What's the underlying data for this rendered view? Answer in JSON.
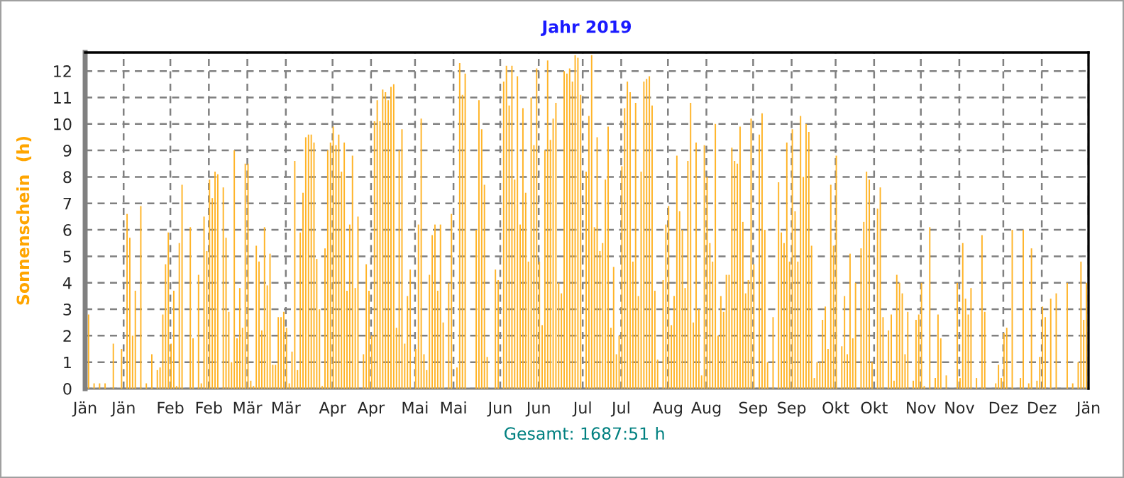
{
  "chart_data": {
    "type": "bar",
    "title": "Jahr 2019",
    "ylabel": "Sonnenschein  (h)",
    "annotations": [
      "Gesamt: 1687:51 h"
    ],
    "x": [
      "2019-01-01",
      "2019-01-02",
      "2019-01-03",
      "2019-01-04",
      "2019-01-05",
      "2019-01-06",
      "2019-01-07",
      "2019-01-08",
      "2019-01-09",
      "2019-01-10",
      "2019-01-11",
      "2019-01-12",
      "2019-01-13",
      "2019-01-14",
      "2019-01-15",
      "2019-01-16",
      "2019-01-17",
      "2019-01-18",
      "2019-01-19",
      "2019-01-20",
      "2019-01-21",
      "2019-01-22",
      "2019-01-23",
      "2019-01-24",
      "2019-01-25",
      "2019-01-26",
      "2019-01-27",
      "2019-01-28",
      "2019-01-29",
      "2019-01-30",
      "2019-01-31",
      "2019-02-01",
      "2019-02-02",
      "2019-02-03",
      "2019-02-04",
      "2019-02-05",
      "2019-02-06",
      "2019-02-07",
      "2019-02-08",
      "2019-02-09",
      "2019-02-10",
      "2019-02-11",
      "2019-02-12",
      "2019-02-13",
      "2019-02-14",
      "2019-02-15",
      "2019-02-16",
      "2019-02-17",
      "2019-02-18",
      "2019-02-19",
      "2019-02-20",
      "2019-02-21",
      "2019-02-22",
      "2019-02-23",
      "2019-02-24",
      "2019-02-25",
      "2019-02-26",
      "2019-02-27",
      "2019-02-28",
      "2019-03-01",
      "2019-03-02",
      "2019-03-03",
      "2019-03-04",
      "2019-03-05",
      "2019-03-06",
      "2019-03-07",
      "2019-03-08",
      "2019-03-09",
      "2019-03-10",
      "2019-03-11",
      "2019-03-12",
      "2019-03-13",
      "2019-03-14",
      "2019-03-15",
      "2019-03-16",
      "2019-03-17",
      "2019-03-18",
      "2019-03-19",
      "2019-03-20",
      "2019-03-21",
      "2019-03-22",
      "2019-03-23",
      "2019-03-24",
      "2019-03-25",
      "2019-03-26",
      "2019-03-27",
      "2019-03-28",
      "2019-03-29",
      "2019-03-30",
      "2019-03-31",
      "2019-04-01",
      "2019-04-02",
      "2019-04-03",
      "2019-04-04",
      "2019-04-05",
      "2019-04-06",
      "2019-04-07",
      "2019-04-08",
      "2019-04-09",
      "2019-04-10",
      "2019-04-11",
      "2019-04-12",
      "2019-04-13",
      "2019-04-14",
      "2019-04-15",
      "2019-04-16",
      "2019-04-17",
      "2019-04-18",
      "2019-04-19",
      "2019-04-20",
      "2019-04-21",
      "2019-04-22",
      "2019-04-23",
      "2019-04-24",
      "2019-04-25",
      "2019-04-26",
      "2019-04-27",
      "2019-04-28",
      "2019-04-29",
      "2019-04-30",
      "2019-05-01",
      "2019-05-02",
      "2019-05-03",
      "2019-05-04",
      "2019-05-05",
      "2019-05-06",
      "2019-05-07",
      "2019-05-08",
      "2019-05-09",
      "2019-05-10",
      "2019-05-11",
      "2019-05-12",
      "2019-05-13",
      "2019-05-14",
      "2019-05-15",
      "2019-05-16",
      "2019-05-17",
      "2019-05-18",
      "2019-05-19",
      "2019-05-20",
      "2019-05-21",
      "2019-05-22",
      "2019-05-23",
      "2019-05-24",
      "2019-05-25",
      "2019-05-26",
      "2019-05-27",
      "2019-05-28",
      "2019-05-29",
      "2019-05-30",
      "2019-05-31",
      "2019-06-01",
      "2019-06-02",
      "2019-06-03",
      "2019-06-04",
      "2019-06-05",
      "2019-06-06",
      "2019-06-07",
      "2019-06-08",
      "2019-06-09",
      "2019-06-10",
      "2019-06-11",
      "2019-06-12",
      "2019-06-13",
      "2019-06-14",
      "2019-06-15",
      "2019-06-16",
      "2019-06-17",
      "2019-06-18",
      "2019-06-19",
      "2019-06-20",
      "2019-06-21",
      "2019-06-22",
      "2019-06-23",
      "2019-06-24",
      "2019-06-25",
      "2019-06-26",
      "2019-06-27",
      "2019-06-28",
      "2019-06-29",
      "2019-06-30",
      "2019-07-01",
      "2019-07-02",
      "2019-07-03",
      "2019-07-04",
      "2019-07-05",
      "2019-07-06",
      "2019-07-07",
      "2019-07-08",
      "2019-07-09",
      "2019-07-10",
      "2019-07-11",
      "2019-07-12",
      "2019-07-13",
      "2019-07-14",
      "2019-07-15",
      "2019-07-16",
      "2019-07-17",
      "2019-07-18",
      "2019-07-19",
      "2019-07-20",
      "2019-07-21",
      "2019-07-22",
      "2019-07-23",
      "2019-07-24",
      "2019-07-25",
      "2019-07-26",
      "2019-07-27",
      "2019-07-28",
      "2019-07-29",
      "2019-07-30",
      "2019-07-31",
      "2019-08-01",
      "2019-08-02",
      "2019-08-03",
      "2019-08-04",
      "2019-08-05",
      "2019-08-06",
      "2019-08-07",
      "2019-08-08",
      "2019-08-09",
      "2019-08-10",
      "2019-08-11",
      "2019-08-12",
      "2019-08-13",
      "2019-08-14",
      "2019-08-15",
      "2019-08-16",
      "2019-08-17",
      "2019-08-18",
      "2019-08-19",
      "2019-08-20",
      "2019-08-21",
      "2019-08-22",
      "2019-08-23",
      "2019-08-24",
      "2019-08-25",
      "2019-08-26",
      "2019-08-27",
      "2019-08-28",
      "2019-08-29",
      "2019-08-30",
      "2019-08-31",
      "2019-09-01",
      "2019-09-02",
      "2019-09-03",
      "2019-09-04",
      "2019-09-05",
      "2019-09-06",
      "2019-09-07",
      "2019-09-08",
      "2019-09-09",
      "2019-09-10",
      "2019-09-11",
      "2019-09-12",
      "2019-09-13",
      "2019-09-14",
      "2019-09-15",
      "2019-09-16",
      "2019-09-17",
      "2019-09-18",
      "2019-09-19",
      "2019-09-20",
      "2019-09-21",
      "2019-09-22",
      "2019-09-23",
      "2019-09-24",
      "2019-09-25",
      "2019-09-26",
      "2019-09-27",
      "2019-09-28",
      "2019-09-29",
      "2019-09-30",
      "2019-10-01",
      "2019-10-02",
      "2019-10-03",
      "2019-10-04",
      "2019-10-05",
      "2019-10-06",
      "2019-10-07",
      "2019-10-08",
      "2019-10-09",
      "2019-10-10",
      "2019-10-11",
      "2019-10-12",
      "2019-10-13",
      "2019-10-14",
      "2019-10-15",
      "2019-10-16",
      "2019-10-17",
      "2019-10-18",
      "2019-10-19",
      "2019-10-20",
      "2019-10-21",
      "2019-10-22",
      "2019-10-23",
      "2019-10-24",
      "2019-10-25",
      "2019-10-26",
      "2019-10-27",
      "2019-10-28",
      "2019-10-29",
      "2019-10-30",
      "2019-10-31",
      "2019-11-01",
      "2019-11-02",
      "2019-11-03",
      "2019-11-04",
      "2019-11-05",
      "2019-11-06",
      "2019-11-07",
      "2019-11-08",
      "2019-11-09",
      "2019-11-10",
      "2019-11-11",
      "2019-11-12",
      "2019-11-13",
      "2019-11-14",
      "2019-11-15",
      "2019-11-16",
      "2019-11-17",
      "2019-11-18",
      "2019-11-19",
      "2019-11-20",
      "2019-11-21",
      "2019-11-22",
      "2019-11-23",
      "2019-11-24",
      "2019-11-25",
      "2019-11-26",
      "2019-11-27",
      "2019-11-28",
      "2019-11-29",
      "2019-11-30",
      "2019-12-01",
      "2019-12-02",
      "2019-12-03",
      "2019-12-04",
      "2019-12-05",
      "2019-12-06",
      "2019-12-07",
      "2019-12-08",
      "2019-12-09",
      "2019-12-10",
      "2019-12-11",
      "2019-12-12",
      "2019-12-13",
      "2019-12-14",
      "2019-12-15",
      "2019-12-16",
      "2019-12-17",
      "2019-12-18",
      "2019-12-19",
      "2019-12-20",
      "2019-12-21",
      "2019-12-22",
      "2019-12-23",
      "2019-12-24",
      "2019-12-25",
      "2019-12-26",
      "2019-12-27",
      "2019-12-28",
      "2019-12-29",
      "2019-12-30",
      "2019-12-31"
    ],
    "series": [
      {
        "color": "#ffb428",
        "values": [
          0,
          2.8,
          0,
          0.2,
          0,
          0.2,
          0,
          0.2,
          0,
          0,
          1.7,
          0,
          0,
          1.5,
          0,
          6.6,
          5.7,
          2.0,
          3.7,
          0,
          6.9,
          0,
          0.2,
          0,
          1.3,
          0,
          0.7,
          0.8,
          2.8,
          4.7,
          5.9,
          1.7,
          3.7,
          0.1,
          5.5,
          7.7,
          0,
          0,
          6.1,
          1.9,
          0,
          4.3,
          0.2,
          6.5,
          5.2,
          7.9,
          7.2,
          8.2,
          8.1,
          0,
          7.6,
          5.7,
          2.9,
          1.0,
          9.0,
          1.9,
          3.8,
          2.3,
          8.5,
          8.5,
          0.3,
          0.1,
          5.4,
          4.8,
          2.2,
          6.1,
          3.9,
          5.1,
          0.9,
          0.9,
          2.7,
          2.7,
          2.9,
          2.3,
          0.2,
          1.4,
          8.6,
          0.7,
          5.9,
          7.4,
          9.5,
          9.6,
          9.6,
          9.3,
          4.9,
          3.0,
          0.1,
          5.3,
          9.0,
          9.3,
          9.9,
          9.2,
          9.6,
          8.2,
          9.3,
          3.7,
          6.2,
          8.8,
          3.8,
          6.5,
          0,
          1.3,
          4.7,
          3.7,
          2.0,
          10.1,
          10.9,
          10.1,
          11.3,
          11.2,
          10.9,
          11.4,
          11.5,
          2.3,
          9.0,
          9.8,
          1.7,
          3.5,
          4.5,
          0,
          1.5,
          6.2,
          10.2,
          1.3,
          0.7,
          4.3,
          5.8,
          6.2,
          3.7,
          6.2,
          2.5,
          0,
          4.0,
          6.6,
          0,
          0.8,
          12.3,
          11.1,
          11.9,
          0,
          0,
          0,
          6.0,
          10.9,
          9.8,
          7.7,
          1.2,
          0,
          0,
          4.5,
          4.1,
          0,
          11.6,
          12.2,
          10.7,
          12.2,
          7.9,
          11.8,
          6.2,
          10.6,
          7.4,
          4.8,
          11.0,
          9.2,
          12.1,
          4.8,
          2.4,
          9.0,
          12.4,
          9.4,
          10.2,
          10.8,
          4.0,
          3.6,
          12.0,
          11.9,
          12.1,
          11.6,
          12.6,
          12.5,
          11.1,
          0,
          8.2,
          10.3,
          12.6,
          6.1,
          9.5,
          5.2,
          5.5,
          7.9,
          9.9,
          2.3,
          4.6,
          1.3,
          2.0,
          8.4,
          10.6,
          11.6,
          11.2,
          4.8,
          10.8,
          3.5,
          8.2,
          11.6,
          11.7,
          11.8,
          10.7,
          3.7,
          1.1,
          0,
          4.1,
          6.2,
          6.9,
          2.4,
          3.5,
          8.8,
          6.7,
          6.0,
          3.8,
          8.6,
          10.8,
          2.5,
          9.3,
          3.0,
          0.5,
          9.2,
          8.0,
          5.5,
          4.8,
          10.0,
          2.0,
          3.5,
          2.9,
          4.3,
          4.3,
          9.1,
          8.6,
          8.5,
          9.9,
          6.3,
          3.6,
          4.1,
          10.2,
          4.7,
          0,
          9.6,
          10.4,
          6.0,
          1.0,
          0,
          2.7,
          0,
          7.8,
          5.9,
          5.5,
          9.3,
          4.8,
          9.8,
          6.7,
          4.8,
          10.3,
          8.0,
          10.0,
          9.7,
          5.4,
          0.4,
          1.0,
          1.0,
          2.6,
          3.1,
          1.5,
          7.7,
          5.4,
          8.8,
          0,
          1.6,
          3.5,
          1.3,
          5.1,
          1.9,
          4.0,
          0,
          5.3,
          6.3,
          8.2,
          7.9,
          1.0,
          0,
          6.8,
          7.6,
          2.7,
          0,
          2.2,
          2.8,
          0.3,
          4.3,
          4.0,
          3.6,
          1.3,
          2.9,
          0,
          0.3,
          2.6,
          2.8,
          4.0,
          0.1,
          0,
          6.1,
          0,
          0.4,
          2.8,
          1.9,
          0,
          0.5,
          0,
          0,
          0,
          4.0,
          0.4,
          5.5,
          3.4,
          2.8,
          3.8,
          0,
          0.4,
          0,
          5.8,
          2.9,
          0,
          0,
          0,
          0.2,
          0.9,
          0.4,
          2.1,
          2.3,
          0,
          6.0,
          0,
          0,
          0.4,
          6.0,
          0,
          0.2,
          5.3,
          0,
          0.3,
          1.2,
          3.1,
          2.7,
          0,
          3.4,
          0,
          3.6,
          0,
          0,
          0,
          4.0,
          0,
          0.2,
          0,
          1.0,
          4.8,
          2.6,
          4.0
        ]
      }
    ],
    "xlim": [
      "2019-01-01",
      "2020-01-01"
    ],
    "xticks": [
      {
        "value": "2019-01-01",
        "label": "Jän"
      },
      {
        "value": "2019-01-15",
        "label": "Jän"
      },
      {
        "value": "2019-02-01",
        "label": "Feb"
      },
      {
        "value": "2019-02-15",
        "label": "Feb"
      },
      {
        "value": "2019-03-01",
        "label": "Mär"
      },
      {
        "value": "2019-03-15",
        "label": "Mär"
      },
      {
        "value": "2019-04-01",
        "label": "Apr"
      },
      {
        "value": "2019-04-15",
        "label": "Apr"
      },
      {
        "value": "2019-05-01",
        "label": "Mai"
      },
      {
        "value": "2019-05-15",
        "label": "Mai"
      },
      {
        "value": "2019-06-01",
        "label": "Jun"
      },
      {
        "value": "2019-06-15",
        "label": "Jun"
      },
      {
        "value": "2019-07-01",
        "label": "Jul"
      },
      {
        "value": "2019-07-15",
        "label": "Jul"
      },
      {
        "value": "2019-08-01",
        "label": "Aug"
      },
      {
        "value": "2019-08-15",
        "label": "Aug"
      },
      {
        "value": "2019-09-01",
        "label": "Sep"
      },
      {
        "value": "2019-09-15",
        "label": "Sep"
      },
      {
        "value": "2019-10-01",
        "label": "Okt"
      },
      {
        "value": "2019-10-15",
        "label": "Okt"
      },
      {
        "value": "2019-11-01",
        "label": "Nov"
      },
      {
        "value": "2019-11-15",
        "label": "Nov"
      },
      {
        "value": "2019-12-01",
        "label": "Dez"
      },
      {
        "value": "2019-12-15",
        "label": "Dez"
      },
      {
        "value": "2020-01-01",
        "label": "Jän"
      }
    ],
    "ylim": [
      0,
      12.7
    ],
    "yticks": [
      0,
      1,
      2,
      3,
      4,
      5,
      6,
      7,
      8,
      9,
      10,
      11,
      12
    ],
    "grid": true
  }
}
